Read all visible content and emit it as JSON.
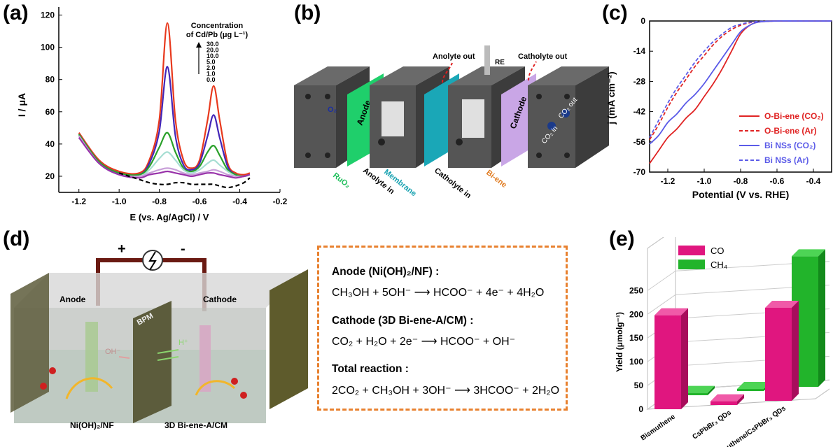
{
  "panels": {
    "a": {
      "label": "(a)",
      "legend_title_line1": "Concentration",
      "legend_title_line2": "of Cd/Pb (μg L⁻¹)",
      "concentrations": [
        "30.0",
        "20.0",
        "10.0",
        "5.0",
        "2.0",
        "1.0",
        "0.0"
      ]
    },
    "b": {
      "label": "(b)",
      "labels": {
        "anolyte_out": "Anolyte out",
        "catholyte_out": "Catholyte out",
        "re": "RE",
        "anode": "Anode",
        "cathode": "Cathode",
        "ruo2": "RuO₂",
        "anolyte_in": "Anolyte in",
        "membrane": "Membrane",
        "catholyte_in": "Catholyte in",
        "bi_ene": "Bi-ene",
        "o2": "O₂",
        "co2_in": "CO₂ in",
        "co2_out": "CO₂ out"
      },
      "colors": {
        "anode": "#1fcf6b",
        "membrane": "#1aa7b7",
        "cathode": "#c9a6e6",
        "ruo2_text": "#1fbf5b",
        "membrane_text": "#17a1b0",
        "bi_ene_text": "#e07b20",
        "arrow": "#e02020"
      }
    },
    "c": {
      "label": "(c)"
    },
    "d": {
      "label": "(d)",
      "plus": "+",
      "minus": "-",
      "anode": "Anode",
      "cathode": "Cathode",
      "bpm": "BPM",
      "oh": "OH⁻",
      "h": "H⁺",
      "left_electrode": "Ni(OH)₂/NF",
      "right_electrode": "3D Bi-ene-A/CM",
      "reactions": {
        "anode_title": "Anode (Ni(OH)₂/NF) :",
        "anode_eq": "CH₃OH + 5OH⁻ ⟶ HCOO⁻ + 4e⁻ + 4H₂O",
        "cathode_title": "Cathode (3D Bi-ene-A/CM) :",
        "cathode_eq": "CO₂ + H₂O + 2e⁻ ⟶ HCOO⁻ + OH⁻",
        "total_title": "Total reaction :",
        "total_eq": "2CO₂ + CH₃OH + 3OH⁻ ⟶ 3HCOO⁻ + 2H₂O"
      }
    },
    "e": {
      "label": "(e)"
    }
  },
  "chart_data": [
    {
      "panel": "a",
      "type": "line",
      "xlabel": "E (vs. Ag/AgCl) / V",
      "ylabel": "I / μA",
      "xlim": [
        -1.3,
        -0.2
      ],
      "ylim": [
        10,
        125
      ],
      "xticks": [
        -1.2,
        -1.0,
        -0.8,
        -0.6,
        -0.4,
        -0.2
      ],
      "yticks": [
        20,
        40,
        60,
        80,
        100,
        120
      ],
      "x": [
        -1.2,
        -1.1,
        -1.0,
        -0.9,
        -0.85,
        -0.8,
        -0.76,
        -0.72,
        -0.68,
        -0.64,
        -0.6,
        -0.56,
        -0.53,
        -0.5,
        -0.46,
        -0.42,
        -0.38,
        -0.35
      ],
      "series": [
        {
          "name": "30.0",
          "color": "#e8391d",
          "values": [
            47,
            30,
            23,
            22,
            30,
            55,
            115,
            55,
            30,
            25,
            30,
            55,
            76,
            55,
            28,
            22,
            21,
            22
          ]
        },
        {
          "name": "20.0",
          "color": "#4326b8",
          "values": [
            46,
            29,
            22,
            21,
            28,
            48,
            88,
            45,
            27,
            24,
            28,
            45,
            58,
            44,
            26,
            21,
            20,
            21
          ]
        },
        {
          "name": "10.0",
          "color": "#2aa02a",
          "values": [
            46,
            29,
            22,
            21,
            26,
            38,
            47,
            35,
            25,
            23,
            26,
            35,
            39,
            33,
            24,
            21,
            20,
            21
          ]
        },
        {
          "name": "5.0",
          "color": "#a7ded3",
          "values": [
            45,
            28,
            21,
            20,
            24,
            31,
            35,
            30,
            24,
            22,
            24,
            28,
            30,
            27,
            23,
            20,
            20,
            21
          ]
        },
        {
          "name": "2.0",
          "color": "#c9a0d9",
          "values": [
            45,
            28,
            21,
            20,
            22,
            24,
            25,
            24,
            22,
            21,
            22,
            23,
            24,
            23,
            21,
            20,
            20,
            21
          ]
        },
        {
          "name": "1.0",
          "color": "#9933aa",
          "values": [
            44,
            28,
            21,
            19,
            21,
            22,
            23,
            22,
            21,
            20,
            21,
            22,
            22,
            21,
            20,
            19,
            20,
            21
          ]
        },
        {
          "name": "0.0",
          "color": "#000000",
          "dashed": true,
          "values": [
            null,
            null,
            22,
            18,
            16,
            15,
            15,
            16,
            16,
            15,
            15,
            15,
            15,
            14,
            13,
            14,
            16,
            19
          ]
        }
      ]
    },
    {
      "panel": "c",
      "type": "line",
      "xlabel": "Potential (V vs. RHE)",
      "ylabel": "j (mA cm⁻²)",
      "xlim": [
        -1.3,
        -0.3
      ],
      "ylim": [
        -70,
        0
      ],
      "xticks": [
        -1.2,
        -1.0,
        -0.8,
        -0.6,
        -0.4
      ],
      "yticks": [
        0,
        -14,
        -28,
        -42,
        -56,
        -70
      ],
      "x": [
        -1.3,
        -1.25,
        -1.2,
        -1.15,
        -1.1,
        -1.05,
        -1.0,
        -0.95,
        -0.9,
        -0.85,
        -0.8,
        -0.75,
        -0.7,
        -0.6,
        -0.5,
        -0.4,
        -0.3
      ],
      "legend": [
        "O-Bi-ene (CO₂)",
        "O-Bi-ene (Ar)",
        "Bi NSs (CO₂)",
        "Bi NSs (Ar)"
      ],
      "series": [
        {
          "name": "O-Bi-ene (CO₂)",
          "color": "#e02424",
          "dashed": false,
          "values": [
            -66,
            -60,
            -54,
            -50,
            -45,
            -41,
            -35,
            -29,
            -22,
            -14,
            -6,
            -2,
            -0.5,
            0,
            0,
            0,
            0
          ]
        },
        {
          "name": "O-Bi-ene (Ar)",
          "color": "#e02424",
          "dashed": true,
          "values": [
            -55,
            -48,
            -40,
            -33,
            -27,
            -21,
            -16,
            -11,
            -7,
            -4,
            -2,
            -0.8,
            -0.3,
            0,
            0,
            0,
            0
          ]
        },
        {
          "name": "Bi NSs (CO₂)",
          "color": "#5b5be8",
          "dashed": false,
          "values": [
            -57,
            -53,
            -47,
            -43,
            -38,
            -34,
            -29,
            -23,
            -17,
            -11,
            -5,
            -2,
            -0.5,
            0,
            0,
            0,
            0
          ]
        },
        {
          "name": "Bi NSs (Ar)",
          "color": "#5b5be8",
          "dashed": true,
          "values": [
            -54,
            -46,
            -38,
            -31,
            -25,
            -19,
            -14,
            -9.5,
            -6,
            -3,
            -1.5,
            -0.6,
            -0.2,
            0,
            0,
            0,
            0
          ]
        }
      ]
    },
    {
      "panel": "e",
      "type": "bar",
      "ylabel": "Yield (μmolg⁻¹)",
      "yticks": [
        0,
        50,
        100,
        150,
        200,
        250
      ],
      "categories": [
        "Bismuthene",
        "CsPbBr₃ QDs",
        "Bismuthene/CsPbBr₃ QDs"
      ],
      "series": [
        {
          "name": "CO",
          "color": "#e0167f",
          "values": [
            198,
            8,
            196
          ]
        },
        {
          "name": "CH₄",
          "color": "#22b42b",
          "values": [
            5,
            0,
            275
          ]
        }
      ],
      "legend": [
        "CO",
        "CH₄"
      ]
    }
  ]
}
